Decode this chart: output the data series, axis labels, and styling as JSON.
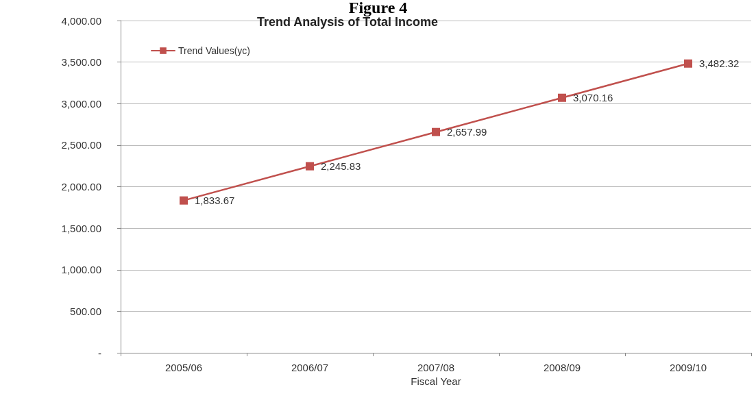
{
  "chart_data": {
    "type": "line",
    "title": "Figure 4",
    "subtitle": "Trend Analysis of Total Income",
    "xlabel": "Fiscal Year",
    "categories": [
      "2005/06",
      "2006/07",
      "2007/08",
      "2008/09",
      "2009/10"
    ],
    "series": [
      {
        "name": "Trend Values(yc)",
        "color": "#c0504d",
        "values": [
          1833.67,
          2245.83,
          2657.99,
          3070.16,
          3482.32
        ],
        "value_labels": [
          "1,833.67",
          "2,245.83",
          "2,657.99",
          "3,070.16",
          "3,482.32"
        ]
      }
    ],
    "ylim": [
      0,
      4000
    ],
    "yticks": [
      {
        "value": 0,
        "label": "-"
      },
      {
        "value": 500,
        "label": "500.00"
      },
      {
        "value": 1000,
        "label": "1,000.00"
      },
      {
        "value": 1500,
        "label": "1,500.00"
      },
      {
        "value": 2000,
        "label": "2,000.00"
      },
      {
        "value": 2500,
        "label": "2,500.00"
      },
      {
        "value": 3000,
        "label": "3,000.00"
      },
      {
        "value": 3500,
        "label": "3,500.00"
      },
      {
        "value": 4000,
        "label": "4,000.00"
      }
    ],
    "grid": "y",
    "legend": "top left",
    "marker": "square",
    "line_style": "solid"
  }
}
